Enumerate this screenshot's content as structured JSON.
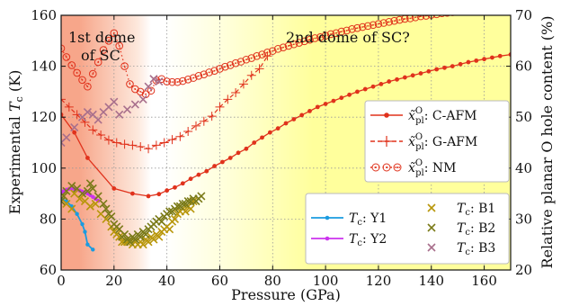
{
  "chart_data": {
    "type": "line",
    "xlabel": "Pressure (GPa)",
    "ylabel_left": "Experimental T_c (K)",
    "ylabel_right": "Relative planar O hole content (%)",
    "xlim": [
      0,
      170
    ],
    "ylim_left": [
      60,
      160
    ],
    "ylim_right": [
      20,
      70
    ],
    "x_ticks": [
      0,
      20,
      40,
      60,
      80,
      100,
      120,
      140,
      160
    ],
    "y_left_ticks": [
      60,
      80,
      100,
      120,
      140,
      160
    ],
    "y_right_ticks": [
      20,
      30,
      40,
      50,
      60,
      70
    ],
    "grid": true,
    "annotations": {
      "dome1_line1": "1st dome",
      "dome1_line2": "of SC",
      "dome2": "2nd dome of SC?"
    },
    "background": {
      "left_color": "#f7a68a",
      "right_color": "#ffff9c",
      "fade_from": 15,
      "fade_to": 65
    },
    "legend_hole": {
      "placement": "center-right",
      "entries": [
        {
          "series": "c_afm",
          "label": "C-AFM",
          "color": "#e0321c"
        },
        {
          "series": "g_afm",
          "label": "G-AFM",
          "color": "#e0321c"
        },
        {
          "series": "nm",
          "label": "NM",
          "color": "#e0321c"
        }
      ]
    },
    "legend_tc": {
      "placement": "lower-right",
      "entries": [
        {
          "series": "y1",
          "label": "Y1",
          "color": "#1a9be0"
        },
        {
          "series": "y2",
          "label": "Y2",
          "color": "#cc33ee"
        },
        {
          "series": "b1",
          "label": "B1",
          "color": "#b8960a"
        },
        {
          "series": "b2",
          "label": "B2",
          "color": "#7a7a18"
        },
        {
          "series": "b3",
          "label": "B3",
          "color": "#a86f8c"
        }
      ]
    },
    "series": [
      {
        "id": "c_afm",
        "axis": "right",
        "style": "line-dot",
        "color": "#e0321c",
        "x": [
          0,
          5,
          10,
          20,
          27,
          33,
          37,
          40,
          43,
          46,
          49,
          52,
          55,
          58,
          61,
          64,
          67,
          70,
          73,
          76,
          79,
          82,
          85,
          88,
          91,
          94,
          97,
          100,
          103,
          106,
          109,
          112,
          115,
          118,
          121,
          124,
          127,
          130,
          133,
          136,
          139,
          142,
          145,
          148,
          151,
          154,
          157,
          160,
          163,
          166,
          170
        ],
        "y": [
          50.5,
          47,
          42,
          36,
          35,
          34.5,
          34.9,
          35.6,
          36.2,
          37,
          37.9,
          38.7,
          39.4,
          40.4,
          41.2,
          42,
          43,
          43.8,
          45,
          46,
          47,
          47.8,
          48.8,
          49.6,
          50.4,
          51.2,
          52,
          52.6,
          53.2,
          53.8,
          54.4,
          55,
          55.5,
          56,
          56.5,
          57,
          57.4,
          57.8,
          58.2,
          58.6,
          59,
          59.4,
          59.7,
          60,
          60.4,
          60.8,
          61.1,
          61.4,
          61.7,
          62,
          62.3
        ]
      },
      {
        "id": "g_afm",
        "axis": "right",
        "style": "dash-plus",
        "color": "#e0321c",
        "x": [
          0,
          3,
          6,
          9,
          12,
          15,
          18,
          21,
          24,
          27,
          30,
          33,
          36,
          39,
          42,
          45,
          48,
          51,
          54,
          57,
          60,
          63,
          66,
          69,
          72,
          75,
          78
        ],
        "y": [
          53.5,
          52,
          50.5,
          49,
          47.5,
          46.5,
          45.5,
          45,
          44.7,
          44.5,
          44.2,
          43.8,
          44.5,
          45,
          45.6,
          46.2,
          47.2,
          48.3,
          49.2,
          50.2,
          52,
          53.5,
          54.8,
          56.5,
          58.2,
          59.5,
          62
        ]
      },
      {
        "id": "nm",
        "axis": "right",
        "style": "dot-circle",
        "color": "#e0321c",
        "x": [
          0,
          2,
          4,
          6,
          8,
          10,
          12,
          14,
          16,
          18,
          20,
          22,
          24,
          26,
          28,
          30,
          32,
          34,
          36,
          38,
          40,
          42,
          44,
          46,
          48,
          50,
          52,
          54,
          56,
          58,
          60,
          62,
          64,
          66,
          68,
          70,
          72,
          74,
          76,
          78,
          80,
          82,
          84,
          86,
          88,
          90,
          92,
          94,
          96,
          98,
          100,
          102,
          104,
          106,
          108,
          110,
          112,
          114,
          116,
          118,
          120,
          122,
          124,
          126,
          128,
          130,
          132,
          134,
          136,
          138,
          140,
          142,
          144,
          146,
          148,
          150,
          152,
          154,
          156,
          158,
          160,
          162,
          164,
          166,
          168,
          170
        ],
        "y": [
          63.5,
          61.8,
          60.2,
          58.7,
          57.3,
          56,
          58.5,
          60.8,
          63.2,
          65,
          66.5,
          64,
          60,
          56.5,
          55.5,
          55,
          54.5,
          55.2,
          57.2,
          57.5,
          57,
          56.9,
          56.9,
          57.1,
          57.4,
          57.7,
          58.1,
          58.4,
          58.8,
          59.1,
          59.5,
          59.9,
          60.2,
          60.6,
          60.9,
          61.3,
          61.6,
          62,
          62.3,
          62.7,
          63,
          63.4,
          63.7,
          64,
          64.3,
          64.6,
          64.9,
          65.2,
          65.5,
          65.7,
          66,
          66.3,
          66.5,
          66.8,
          67,
          67.3,
          67.5,
          67.7,
          67.9,
          68.1,
          68.3,
          68.5,
          68.7,
          68.9,
          69.1,
          69.3,
          69.4,
          69.6,
          69.8,
          69.9,
          70.1,
          70.2,
          70.4,
          70.5,
          70.6,
          70.8,
          70.9,
          71,
          71.1,
          71.2,
          71.3,
          71.4,
          71.5,
          71.6,
          71.7,
          71.8
        ]
      },
      {
        "id": "y1",
        "axis": "left",
        "style": "line-dot",
        "color": "#1a9be0",
        "x": [
          0,
          2,
          4,
          6,
          8,
          9,
          10,
          12
        ],
        "y": [
          88,
          87,
          85,
          82,
          78,
          75,
          70,
          68
        ]
      },
      {
        "id": "y2",
        "axis": "left",
        "style": "line-dot",
        "color": "#cc33ee",
        "x": [
          0,
          1,
          2,
          3,
          4,
          5,
          6,
          7,
          8,
          9,
          10,
          11,
          12,
          13,
          14
        ],
        "y": [
          90,
          91,
          91.5,
          91.8,
          92,
          91.8,
          91.6,
          91.2,
          90.8,
          90.4,
          90,
          89.4,
          88.7,
          88,
          87.2
        ]
      },
      {
        "id": "b1",
        "axis": "left",
        "style": "cross",
        "color": "#b8960a",
        "x": [
          2,
          4,
          5,
          7,
          9,
          11,
          13,
          15,
          17,
          19,
          20,
          21,
          22,
          23,
          24,
          25,
          26,
          27,
          28,
          29,
          30,
          31,
          32,
          33,
          34,
          35,
          36,
          37,
          38,
          39,
          40,
          41,
          42,
          43,
          44,
          45,
          46,
          47,
          48,
          49,
          50
        ],
        "y": [
          86,
          84,
          90,
          88,
          87,
          85,
          86,
          82,
          80,
          77,
          75,
          74,
          73,
          71,
          71,
          71,
          72,
          70,
          71,
          70,
          71,
          70,
          72,
          71,
          73,
          72,
          74,
          73,
          75,
          76,
          77,
          76,
          79,
          80,
          82,
          83,
          84,
          83,
          85,
          84,
          87
        ]
      },
      {
        "id": "b2",
        "axis": "left",
        "style": "cross",
        "color": "#7a7a18",
        "x": [
          0,
          1,
          2,
          4,
          6,
          8,
          10,
          11,
          12,
          14,
          16,
          17,
          18,
          19,
          20,
          21,
          22,
          23,
          24,
          25,
          26,
          27,
          28,
          29,
          30,
          31,
          32,
          33,
          34,
          35,
          36,
          37,
          38,
          39,
          40,
          41,
          42,
          43,
          44,
          45,
          46,
          47,
          48,
          49,
          50,
          51,
          52,
          53
        ],
        "y": [
          87,
          89,
          91,
          93,
          92,
          90,
          91,
          94,
          92,
          89,
          86,
          84,
          82,
          81,
          78,
          77,
          76,
          73,
          74,
          72,
          71,
          73,
          72,
          74,
          73,
          75,
          74,
          76,
          77,
          78,
          79,
          80,
          79,
          81,
          82,
          83,
          83,
          84,
          85,
          85,
          86,
          86,
          87,
          87,
          88,
          87,
          88,
          89
        ]
      },
      {
        "id": "b3",
        "axis": "left",
        "style": "cross",
        "color": "#a86f8c",
        "x": [
          0,
          2,
          5,
          8,
          10,
          12,
          14,
          16,
          18,
          20,
          22,
          25,
          28,
          31,
          33,
          35,
          37
        ],
        "y": [
          110,
          112,
          116,
          120,
          122,
          121,
          119,
          122,
          124,
          126,
          121,
          123,
          125,
          127,
          132,
          135,
          134
        ]
      }
    ]
  }
}
